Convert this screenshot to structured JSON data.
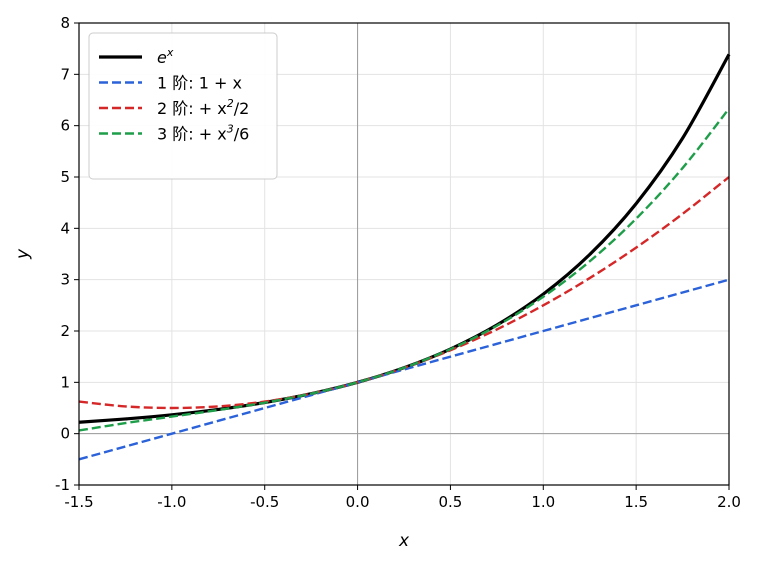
{
  "chart_data": {
    "type": "line",
    "xlabel": "x",
    "ylabel": "y",
    "xlim": [
      -1.5,
      2.0
    ],
    "ylim": [
      -1,
      8
    ],
    "x_ticks": [
      "-1.5",
      "-1.0",
      "-0.5",
      "0.0",
      "0.5",
      "1.0",
      "1.5",
      "2.0"
    ],
    "y_ticks": [
      "-1",
      "0",
      "1",
      "2",
      "3",
      "4",
      "5",
      "6",
      "7",
      "8"
    ],
    "grid": true,
    "legend_position": "top-left",
    "x": [
      -1.5,
      -1.25,
      -1.0,
      -0.75,
      -0.5,
      -0.25,
      0.0,
      0.25,
      0.5,
      0.75,
      1.0,
      1.25,
      1.5,
      1.75,
      2.0
    ],
    "series": [
      {
        "name": "e^x",
        "legend": {
          "pre": "e",
          "sup": "x",
          "post": ""
        },
        "color": "#000000",
        "style": "solid",
        "values": [
          0.223,
          0.287,
          0.368,
          0.472,
          0.607,
          0.779,
          1.0,
          1.284,
          1.649,
          2.117,
          2.718,
          3.49,
          4.482,
          5.755,
          7.389
        ]
      },
      {
        "name": "1 阶: 1 + x",
        "legend": {
          "pre": "1 阶: 1 + x",
          "sup": "",
          "post": ""
        },
        "color": "#2b62d9",
        "style": "dashed",
        "values": [
          -0.5,
          -0.25,
          0.0,
          0.25,
          0.5,
          0.75,
          1.0,
          1.25,
          1.5,
          1.75,
          2.0,
          2.25,
          2.5,
          2.75,
          3.0
        ]
      },
      {
        "name": "2 阶: + x²/2",
        "legend": {
          "pre": "2 阶: + x",
          "sup": "2",
          "post": "/2"
        },
        "color": "#d62728",
        "style": "dashed",
        "values": [
          0.625,
          0.531,
          0.5,
          0.531,
          0.625,
          0.781,
          1.0,
          1.281,
          1.625,
          2.031,
          2.5,
          3.031,
          3.625,
          4.281,
          5.0
        ]
      },
      {
        "name": "3 阶: + x³/6",
        "legend": {
          "pre": "3 阶: + x",
          "sup": "3",
          "post": "/6"
        },
        "color": "#1f9e4a",
        "style": "dashed",
        "values": [
          0.063,
          0.206,
          0.333,
          0.461,
          0.604,
          0.779,
          1.0,
          1.284,
          1.646,
          2.102,
          2.667,
          3.357,
          4.188,
          5.174,
          6.333
        ]
      }
    ]
  }
}
